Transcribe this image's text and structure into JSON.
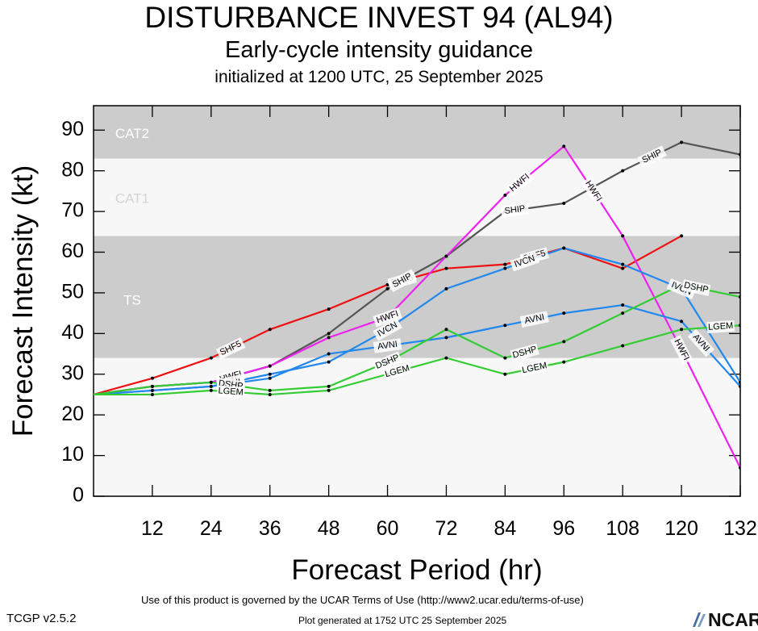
{
  "title": "DISTURBANCE INVEST 94 (AL94)",
  "subtitle": "Early-cycle intensity guidance",
  "init_line": "initialized at 1200 UTC, 25 September 2025",
  "footer": {
    "terms": "Use of this product is governed by the UCAR Terms of Use (http://www2.ucar.edu/terms-of-use)",
    "generated": "Plot generated at 1752 UTC   25 September 2025",
    "version": "TCGP v2.5.2",
    "logo_text": "NCAR"
  },
  "chart_data": {
    "type": "line",
    "title": "DISTURBANCE INVEST 94 (AL94)",
    "xlabel": "Forecast Period (hr)",
    "ylabel": "Forecast Intensity (kt)",
    "xlim": [
      0,
      132
    ],
    "ylim": [
      0,
      96
    ],
    "xticks": [
      12,
      24,
      36,
      48,
      60,
      72,
      84,
      96,
      108,
      120,
      132
    ],
    "yticks": [
      0,
      10,
      20,
      30,
      40,
      50,
      60,
      70,
      80,
      90
    ],
    "bands": [
      {
        "label": "TS",
        "from": 34,
        "to": 64,
        "color": "#cccccc"
      },
      {
        "label": "CAT1",
        "from": 64,
        "to": 83,
        "color": "#f7f7f7"
      },
      {
        "label": "CAT2",
        "from": 83,
        "to": 96,
        "color": "#cccccc"
      }
    ],
    "series": [
      {
        "name": "SHF5",
        "color": "#ee1111",
        "x": [
          0,
          12,
          24,
          36,
          48,
          60,
          72,
          84,
          96,
          108,
          120
        ],
        "y": [
          25,
          29,
          34,
          41,
          46,
          52,
          56,
          57,
          61,
          56,
          64
        ],
        "labels": [
          {
            "at": 28,
            "text": "SHF5"
          },
          {
            "at": 63,
            "text": "SHF5"
          },
          {
            "at": 90,
            "text": "SHF5"
          }
        ]
      },
      {
        "name": "SHIP",
        "color": "#555555",
        "x": [
          0,
          12,
          24,
          36,
          48,
          60,
          72,
          84,
          96,
          108,
          120,
          132
        ],
        "y": [
          25,
          27,
          28,
          32,
          40,
          51,
          59,
          70,
          72,
          80,
          87,
          84
        ],
        "labels": [
          {
            "at": 28,
            "text": "SHIP"
          },
          {
            "at": 63,
            "text": "SHIP"
          },
          {
            "at": 86,
            "text": "SHIP"
          },
          {
            "at": 114,
            "text": "SHIP"
          }
        ]
      },
      {
        "name": "HWFI",
        "color": "#ee22ee",
        "x": [
          0,
          12,
          24,
          36,
          48,
          60,
          72,
          84,
          96,
          108,
          120,
          132
        ],
        "y": [
          25,
          27,
          28,
          32,
          39,
          44,
          59,
          74,
          86,
          64,
          36,
          7
        ],
        "labels": [
          {
            "at": 28,
            "text": "HWFI"
          },
          {
            "at": 60,
            "text": "HWFI"
          },
          {
            "at": 87,
            "text": "HWFI"
          },
          {
            "at": 102,
            "text": "HWFI"
          },
          {
            "at": 120,
            "text": "HWFI"
          }
        ]
      },
      {
        "name": "IVCN",
        "color": "#2288ee",
        "x": [
          0,
          12,
          24,
          36,
          48,
          60,
          72,
          84,
          96,
          108,
          120,
          132
        ],
        "y": [
          25,
          26,
          27,
          30,
          33,
          41,
          51,
          56,
          61,
          57,
          51,
          28
        ],
        "labels": [
          {
            "at": 28,
            "text": "IVCN"
          },
          {
            "at": 60,
            "text": "IVCN"
          },
          {
            "at": 88,
            "text": "IVCN"
          },
          {
            "at": 120,
            "text": "IVCN"
          }
        ]
      },
      {
        "name": "AVNI",
        "color": "#2288ee",
        "x": [
          0,
          12,
          24,
          36,
          48,
          60,
          72,
          84,
          96,
          108,
          120,
          132
        ],
        "y": [
          25,
          26,
          27,
          29,
          35,
          37,
          39,
          42,
          45,
          47,
          43,
          27
        ],
        "labels": [
          {
            "at": 28,
            "text": "AVNI"
          },
          {
            "at": 60,
            "text": "AVNI"
          },
          {
            "at": 90,
            "text": "AVNI"
          },
          {
            "at": 124,
            "text": "AVNI"
          }
        ]
      },
      {
        "name": "DSHP",
        "color": "#33cc33",
        "x": [
          0,
          12,
          24,
          36,
          48,
          60,
          72,
          84,
          96,
          108,
          120,
          132
        ],
        "y": [
          25,
          27,
          28,
          26,
          27,
          33,
          41,
          34,
          38,
          45,
          52,
          49
        ],
        "labels": [
          {
            "at": 28,
            "text": "DSHP"
          },
          {
            "at": 60,
            "text": "DSHP"
          },
          {
            "at": 88,
            "text": "DSHP"
          },
          {
            "at": 123,
            "text": "DSHP"
          }
        ]
      },
      {
        "name": "LGEM",
        "color": "#33cc33",
        "x": [
          0,
          12,
          24,
          36,
          48,
          60,
          72,
          84,
          96,
          108,
          120,
          132
        ],
        "y": [
          25,
          25,
          26,
          25,
          26,
          30,
          34,
          30,
          33,
          37,
          41,
          42
        ],
        "labels": [
          {
            "at": 28,
            "text": "LGEM"
          },
          {
            "at": 62,
            "text": "LGEM"
          },
          {
            "at": 90,
            "text": "LGEM"
          },
          {
            "at": 128,
            "text": "LGEM"
          }
        ]
      }
    ]
  }
}
